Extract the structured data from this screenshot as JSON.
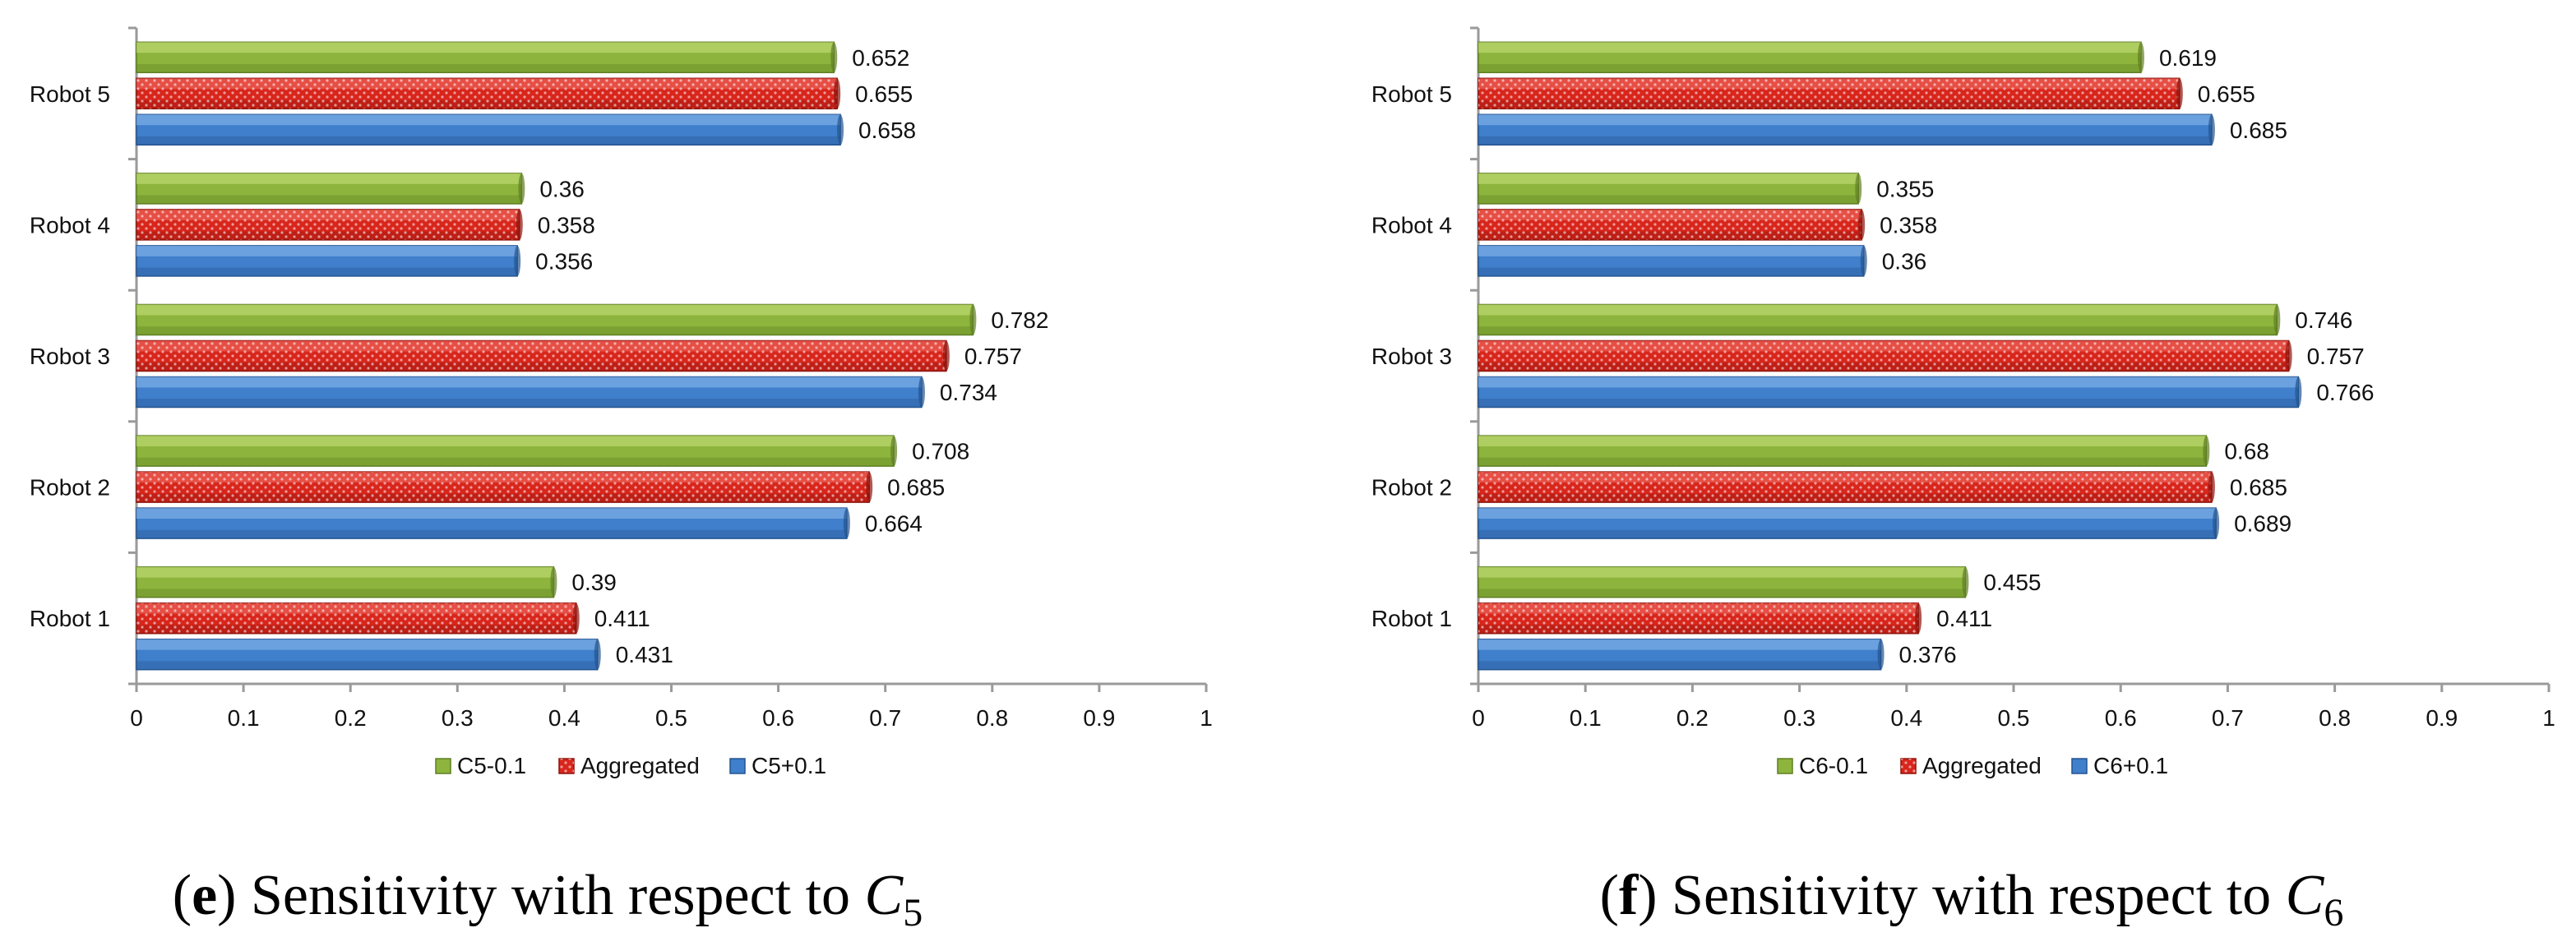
{
  "chart_data": [
    {
      "type": "bar",
      "orientation": "horizontal",
      "categories": [
        "Robot 1",
        "Robot 2",
        "Robot 3",
        "Robot 4",
        "Robot 5"
      ],
      "series": [
        {
          "name": "C5-0.1",
          "values": [
            0.39,
            0.708,
            0.782,
            0.36,
            0.652
          ]
        },
        {
          "name": "Aggregated",
          "values": [
            0.411,
            0.685,
            0.757,
            0.358,
            0.655
          ]
        },
        {
          "name": "C5+0.1",
          "values": [
            0.431,
            0.664,
            0.734,
            0.356,
            0.658
          ]
        }
      ],
      "xlim": [
        0,
        1
      ],
      "xticks": [
        "0",
        "0.1",
        "0.2",
        "0.3",
        "0.4",
        "0.5",
        "0.6",
        "0.7",
        "0.8",
        "0.9",
        "1"
      ],
      "legend_position": "bottom",
      "caption": {
        "letter": "e",
        "text": "Sensitivity with respect to ",
        "var": "C",
        "sub": "5"
      }
    },
    {
      "type": "bar",
      "orientation": "horizontal",
      "categories": [
        "Robot 1",
        "Robot 2",
        "Robot 3",
        "Robot 4",
        "Robot 5"
      ],
      "series": [
        {
          "name": "C6-0.1",
          "values": [
            0.455,
            0.68,
            0.746,
            0.355,
            0.619
          ]
        },
        {
          "name": "Aggregated",
          "values": [
            0.411,
            0.685,
            0.757,
            0.358,
            0.655
          ]
        },
        {
          "name": "C6+0.1",
          "values": [
            0.376,
            0.689,
            0.766,
            0.36,
            0.685
          ]
        }
      ],
      "xlim": [
        0,
        1
      ],
      "xticks": [
        "0",
        "0.1",
        "0.2",
        "0.3",
        "0.4",
        "0.5",
        "0.6",
        "0.7",
        "0.8",
        "0.9",
        "1"
      ],
      "legend_position": "bottom",
      "caption": {
        "letter": "f",
        "text": "Sensitivity with respect to ",
        "var": "C",
        "sub": "6"
      }
    }
  ],
  "colors": {
    "series": [
      "#8db43c",
      "#d8261c",
      "#3f7fcb"
    ],
    "series_dark": [
      "#5f7f22",
      "#8f130c",
      "#24548f"
    ],
    "series_light": [
      "#c4e07a",
      "#f06a60",
      "#8bb8ee"
    ]
  }
}
